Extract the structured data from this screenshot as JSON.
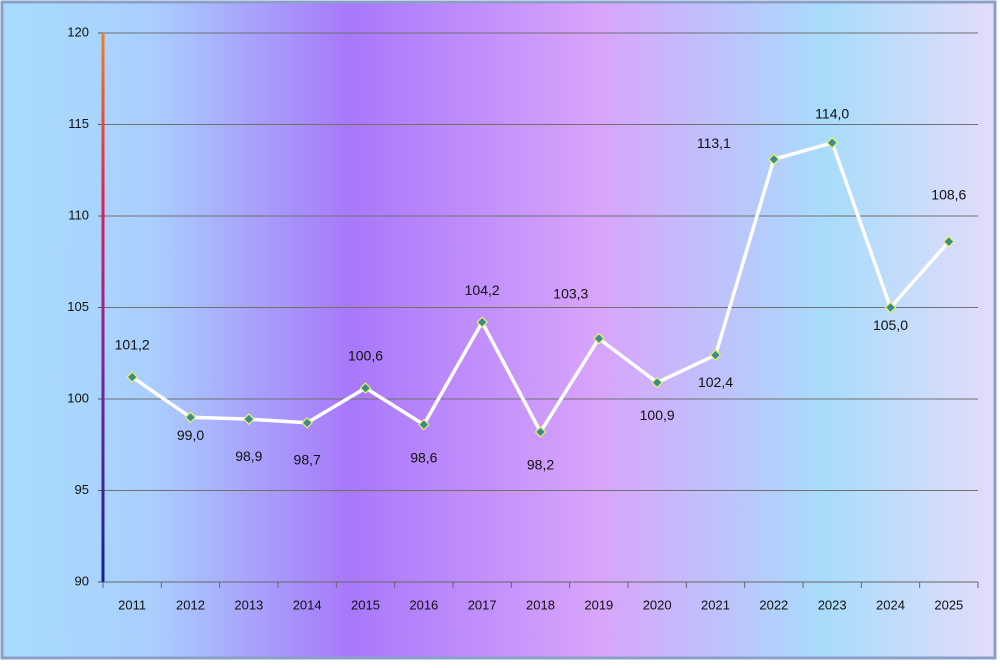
{
  "chart_data": {
    "type": "line",
    "categories": [
      "2011",
      "2012",
      "2013",
      "2014",
      "2015",
      "2016",
      "2017",
      "2018",
      "2019",
      "2020",
      "2021",
      "2022",
      "2023",
      "2024",
      "2025"
    ],
    "series": [
      {
        "color": "#ffffff",
        "values": [
          101.2,
          99.0,
          98.9,
          98.7,
          100.6,
          98.6,
          104.2,
          98.2,
          103.3,
          100.9,
          102.4,
          113.1,
          114.0,
          105.0,
          108.6
        ],
        "value_labels": [
          "101,2",
          "99,0",
          "98,9",
          "98,7",
          "100,6",
          "98,6",
          "104,2",
          "98,2",
          "103,3",
          "100,9",
          "102,4",
          "113,1",
          "114,0",
          "105,0",
          "108,6"
        ]
      }
    ],
    "ylim": [
      90,
      120
    ],
    "yticks": [
      90,
      95,
      100,
      105,
      110,
      115,
      120
    ],
    "grid": true
  }
}
